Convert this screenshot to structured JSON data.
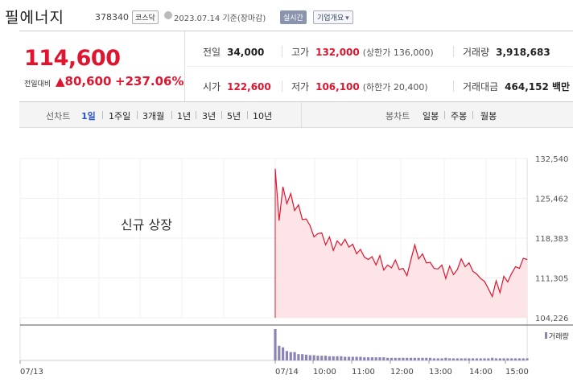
{
  "stock": {
    "name": "필에너지",
    "code": "378340",
    "market": "코스닥",
    "date_text": "2023.07.14 기준(장마감)",
    "realtime_label": "실시간",
    "company_overview_label": "기업개요",
    "dropdown_arrow": "▾"
  },
  "quote": {
    "price": "114,600",
    "prev_label": "전일대비",
    "change_arrow": "▲",
    "change": "80,600",
    "change_pct": "+237.06%",
    "prev_close_label": "전일",
    "prev_close": "34,000",
    "high_label": "고가",
    "high": "132,000",
    "high_sub": "(상한가 136,000)",
    "volume_label": "거래량",
    "volume": "3,918,683",
    "open_label": "시가",
    "open": "122,600",
    "low_label": "저가",
    "low": "106,100",
    "low_sub": "(하한가 20,400)",
    "amount_label": "거래대금",
    "amount": "464,152 백만"
  },
  "tabs": {
    "line_chart_label": "선차트",
    "periods": [
      "1일",
      "1주일",
      "3개월",
      "1년",
      "3년",
      "5년",
      "10년"
    ],
    "selected_period": "1일",
    "candle_chart_label": "봉차트",
    "candles": [
      "일봉",
      "주봉",
      "월봉"
    ]
  },
  "chart_data": {
    "type": "line",
    "annotation": "신규 상장",
    "y_ticks": [
      "132,540",
      "125,462",
      "118,383",
      "111,305",
      "104,226"
    ],
    "ylim": [
      104226,
      132540
    ],
    "x_ticks": [
      "07/13",
      "07/14",
      "10:00",
      "11:00",
      "12:00",
      "13:00",
      "14:00",
      "15:00"
    ],
    "volume_legend": "거래량",
    "colors": {
      "line": "#e0142e",
      "fill": "#fde4e6",
      "volume": "#8d84b6"
    },
    "series": [
      {
        "values": [
          130700,
          121500,
          127500,
          124500,
          126300,
          123300,
          124300,
          121700,
          121800,
          120600,
          118600,
          119200,
          119300,
          117200,
          118600,
          116200,
          117900,
          117100,
          118200,
          116800,
          117300,
          115600,
          116400,
          115000,
          114600,
          115100,
          113600,
          115300,
          112700,
          113600,
          113100,
          114500,
          112800,
          113000,
          111700,
          114500,
          117200,
          114700,
          115600,
          114000,
          114100,
          113000,
          112900,
          113600,
          111200,
          113400,
          111900,
          112800,
          114700,
          113300,
          114000,
          112500,
          112000,
          111200,
          110700,
          109400,
          108000,
          110800,
          108700,
          111600,
          110600,
          112100,
          113300,
          113000,
          114800,
          114600
        ]
      }
    ],
    "volume": [
      60,
      28,
      25,
      18,
      16,
      16,
      12,
      12,
      11,
      10,
      10,
      9,
      9,
      9,
      8,
      8,
      8,
      8,
      7,
      7,
      7,
      7,
      7,
      6,
      6,
      6,
      6,
      6,
      6,
      5,
      5,
      5,
      5,
      5,
      5,
      5,
      5,
      5,
      5,
      5,
      5,
      4,
      4,
      4,
      5,
      4,
      4,
      4,
      4,
      4,
      4,
      4,
      4,
      4,
      4,
      4,
      5,
      4,
      4,
      4,
      4,
      4,
      4,
      4,
      4,
      4
    ]
  }
}
